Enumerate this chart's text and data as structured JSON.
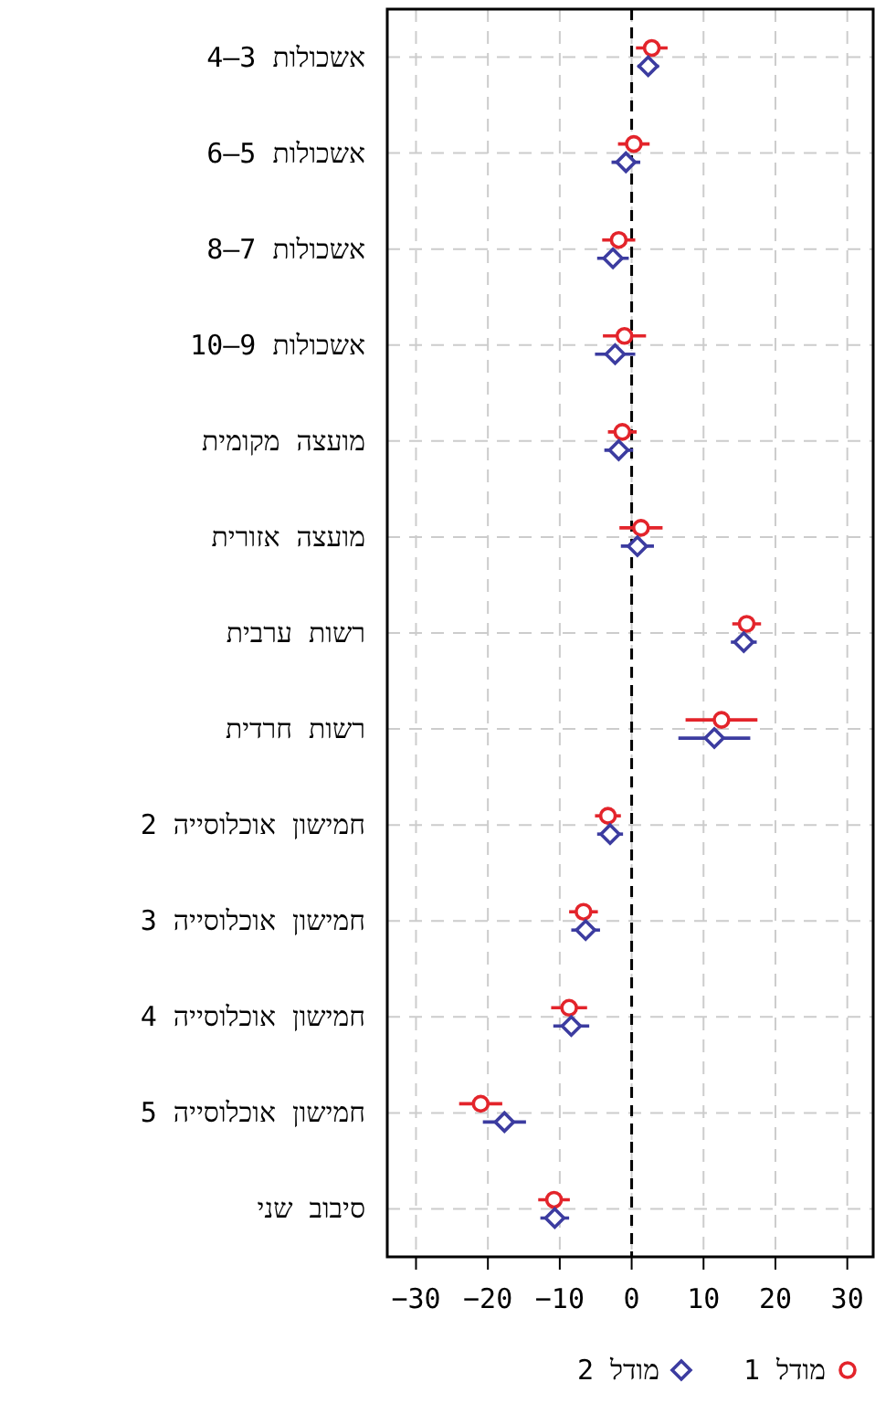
{
  "chart_data": {
    "type": "scatter",
    "orientation": "horizontal",
    "categories": [
      "אשכולות 3–4",
      "אשכולות 5–6",
      "אשכולות 7–8",
      "אשכולות 9–10",
      "מועצה מקומית",
      "מועצה אזורית",
      "רשות ערבית",
      "רשות חרדית",
      "חמישון אוכלוסייה 2",
      "חמישון אוכלוסייה 3",
      "חמישון אוכלוסייה 4",
      "חמישון אוכלוסייה 5",
      "סיבוב שני"
    ],
    "series": [
      {
        "name": "מודל 1",
        "color": "#e3242b",
        "marker": "circle",
        "values": [
          2.8,
          0.3,
          -1.8,
          -1,
          -1.3,
          1.3,
          16,
          12.5,
          -3.3,
          -6.7,
          -8.7,
          -21,
          -10.8
        ],
        "errors": [
          2.2,
          2.2,
          2.3,
          3,
          2,
          3,
          2,
          5,
          1.8,
          2,
          2.5,
          3,
          2.2
        ]
      },
      {
        "name": "מודל 2",
        "color": "#3c3ca0",
        "marker": "diamond",
        "values": [
          2.3,
          -0.8,
          -2.6,
          -2.3,
          -1.8,
          0.8,
          15.6,
          11.5,
          -3,
          -6.4,
          -8.4,
          -17.7,
          -10.7
        ],
        "errors": [
          1.5,
          2,
          2.2,
          2.8,
          2,
          2.3,
          1.8,
          5,
          1.8,
          2,
          2.5,
          3,
          2
        ]
      }
    ],
    "xlim": [
      -34,
      33.6
    ],
    "xticks": [
      -30,
      -20,
      -10,
      0,
      10,
      20,
      30
    ],
    "grid": true,
    "legend": "bottom",
    "ref_lines": [
      {
        "axis": "x",
        "value": 0,
        "color": "#000000",
        "line_style": "dashed"
      }
    ]
  }
}
